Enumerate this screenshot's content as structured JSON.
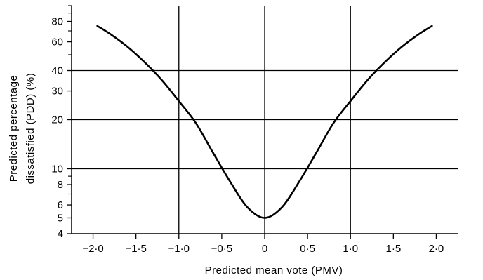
{
  "chart_data": {
    "type": "line",
    "title": "",
    "xlabel": "Predicted mean vote (PMV)",
    "ylabel_line1": "Predicted percentage",
    "ylabel_line2": "dissatisfied (PDD) (%)",
    "x_scale": "linear",
    "y_scale": "log",
    "xlim": [
      -2.25,
      2.25
    ],
    "ylim": [
      4,
      100
    ],
    "x_ticks": [
      {
        "value": -2.0,
        "label": "−2·0"
      },
      {
        "value": -1.5,
        "label": "−1·5"
      },
      {
        "value": -1.0,
        "label": "−1·0"
      },
      {
        "value": -0.5,
        "label": "−0·5"
      },
      {
        "value": 0.0,
        "label": "0"
      },
      {
        "value": 0.5,
        "label": "0·5"
      },
      {
        "value": 1.0,
        "label": "1·0"
      },
      {
        "value": 1.5,
        "label": "1·5"
      },
      {
        "value": 2.0,
        "label": "2·0"
      }
    ],
    "y_ticks": [
      {
        "value": 4,
        "label": "4"
      },
      {
        "value": 5,
        "label": "5"
      },
      {
        "value": 6,
        "label": "6"
      },
      {
        "value": 8,
        "label": "8"
      },
      {
        "value": 10,
        "label": "10"
      },
      {
        "value": 20,
        "label": "20"
      },
      {
        "value": 30,
        "label": "30"
      },
      {
        "value": 40,
        "label": "40"
      },
      {
        "value": 60,
        "label": "60"
      },
      {
        "value": 80,
        "label": "80"
      }
    ],
    "y_minor_ticks": [
      7,
      9,
      50,
      70,
      90,
      100
    ],
    "grid_x": [
      -1.0,
      0.0,
      1.0
    ],
    "grid_y": [
      10,
      20,
      40
    ],
    "grid": true,
    "legend": "none",
    "series": [
      {
        "x": [
          -1.95,
          -1.8,
          -1.6,
          -1.4,
          -1.2,
          -1.0,
          -0.8,
          -0.6,
          -0.4,
          -0.2,
          0.0,
          0.2,
          0.4,
          0.6,
          0.8,
          1.0,
          1.2,
          1.4,
          1.6,
          1.8,
          1.95
        ],
        "y": [
          75,
          67,
          56,
          45,
          35,
          26,
          19,
          12.5,
          8.3,
          5.8,
          5,
          5.8,
          8.3,
          12.5,
          19,
          26,
          35,
          45,
          56,
          67,
          75
        ],
        "color": "#000000"
      }
    ]
  }
}
